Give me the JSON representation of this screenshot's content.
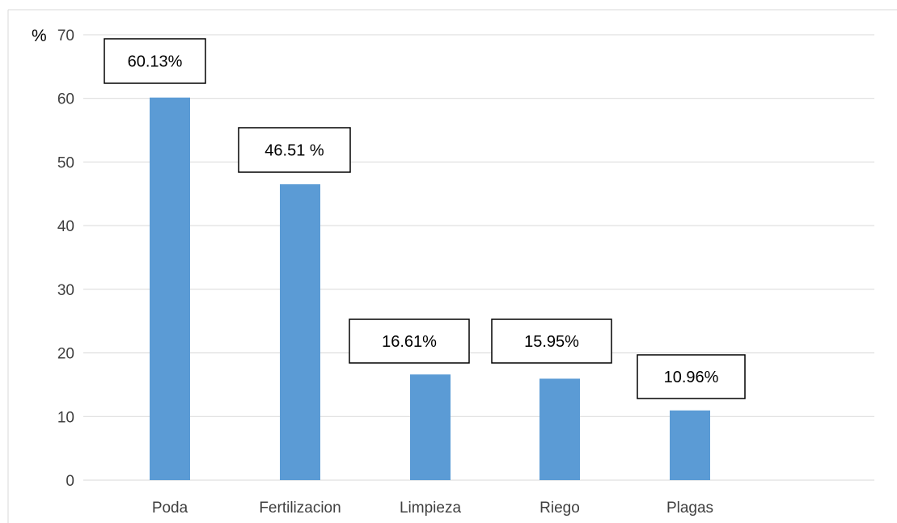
{
  "chart_data": {
    "type": "bar",
    "unit_label": "%",
    "categories": [
      "Poda",
      "Fertilizacion",
      "Limpieza",
      "Riego",
      "Plagas"
    ],
    "values": [
      60.13,
      46.51,
      16.61,
      15.95,
      10.96
    ],
    "data_labels": [
      "60.13%",
      "46.51 %",
      "16.61%",
      "15.95%",
      "10.96%"
    ],
    "yticks": [
      "0",
      "10",
      "20",
      "30",
      "40",
      "50",
      "60",
      "70"
    ],
    "ylim": [
      0,
      70
    ],
    "grid": true,
    "bar_color": "#5b9bd5",
    "gridline_color": "#d9d9d9"
  }
}
